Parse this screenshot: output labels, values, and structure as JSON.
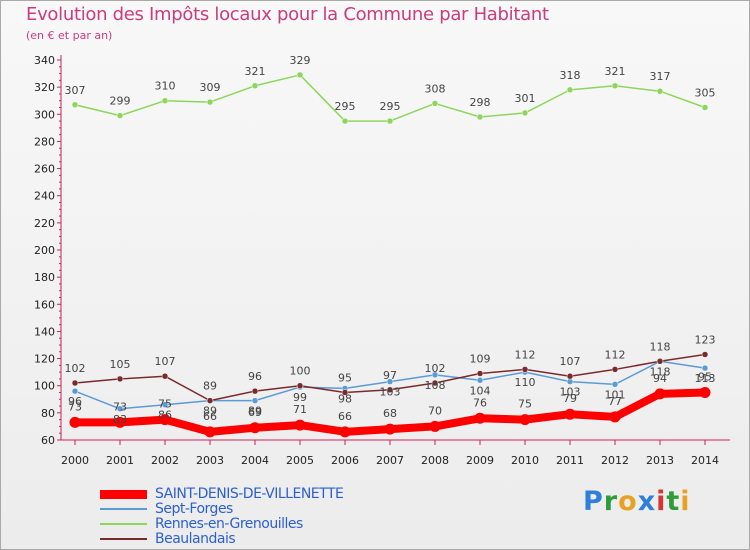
{
  "title": "Evolution des Impôts locaux pour la Commune par Habitant",
  "subtitle": "(en € et par an)",
  "logo": "Proxiti",
  "chart_data": {
    "type": "line",
    "x": [
      "2000",
      "2001",
      "2002",
      "2003",
      "2004",
      "2005",
      "2006",
      "2007",
      "2008",
      "2009",
      "2010",
      "2011",
      "2012",
      "2013",
      "2014"
    ],
    "ylim": [
      60,
      340
    ],
    "yticks": [
      60,
      80,
      100,
      120,
      140,
      160,
      180,
      200,
      220,
      240,
      260,
      280,
      300,
      320,
      340
    ],
    "grid": false,
    "legend_position": "bottom-left",
    "series": [
      {
        "name": "SAINT-DENIS-DE-VILLENETTE",
        "color": "#ff0000",
        "values": [
          73,
          73,
          75,
          66,
          69,
          71,
          66,
          68,
          70,
          76,
          75,
          79,
          77,
          94,
          95
        ]
      },
      {
        "name": "Sept-Forges",
        "color": "#5b9bd5",
        "values": [
          96,
          83,
          86,
          89,
          89,
          99,
          98,
          103,
          108,
          104,
          110,
          103,
          101,
          118,
          113
        ]
      },
      {
        "name": "Rennes-en-Grenouilles",
        "color": "#8ed65b",
        "values": [
          307,
          299,
          310,
          309,
          321,
          329,
          295,
          295,
          308,
          298,
          301,
          318,
          321,
          317,
          305
        ]
      },
      {
        "name": "Beaulandais",
        "color": "#7a2a2a",
        "values": [
          102,
          105,
          107,
          89,
          96,
          100,
          95,
          97,
          102,
          109,
          112,
          107,
          112,
          118,
          123
        ]
      }
    ]
  }
}
